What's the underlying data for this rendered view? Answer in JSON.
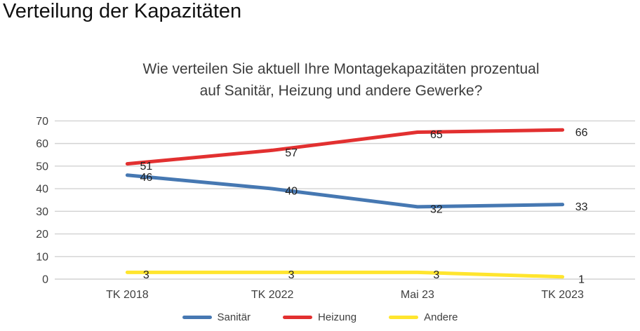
{
  "page": {
    "title": "Verteilung der Kapazitäten"
  },
  "chart_data": {
    "type": "line",
    "title": "Wie verteilen Sie aktuell Ihre Montagekapazitäten prozentual auf Sanitär, Heizung und andere Gewerke?",
    "title_lines": [
      "Wie verteilen Sie aktuell Ihre Montagekapazitäten prozentual",
      "auf Sanitär, Heizung und andere Gewerke?"
    ],
    "categories": [
      "TK 2018",
      "TK 2022",
      "Mai 23",
      "TK 2023"
    ],
    "series": [
      {
        "name": "Sanitär",
        "color": "#4678b2",
        "values": [
          46,
          40,
          32,
          33
        ]
      },
      {
        "name": "Heizung",
        "color": "#e23030",
        "values": [
          51,
          57,
          65,
          66
        ]
      },
      {
        "name": "Andere",
        "color": "#ffe52e",
        "values": [
          3,
          3,
          3,
          1
        ]
      }
    ],
    "xlabel": "",
    "ylabel": "",
    "ylim": [
      0,
      70
    ],
    "yticks": [
      0,
      10,
      20,
      30,
      40,
      50,
      60,
      70
    ],
    "grid": true,
    "legend_position": "bottom",
    "colors": {
      "gridline": "#d2d2d2",
      "axis_text": "#3f3f3f",
      "data_label": "#1f1f1f"
    }
  }
}
